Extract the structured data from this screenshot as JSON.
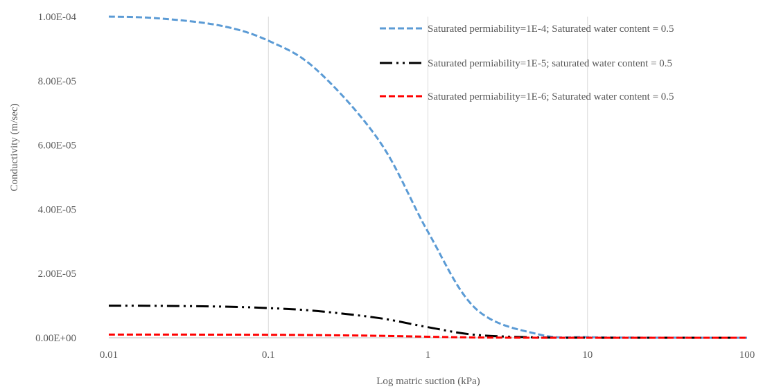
{
  "chart_data": {
    "type": "line",
    "xscale": "log",
    "xlim": [
      0.01,
      100
    ],
    "ylim": [
      0,
      0.0001
    ],
    "xlabel": "Log matric suction (kPa)",
    "ylabel": "Conductivity (m/sec)",
    "x_ticks": [
      "0.01",
      "0.1",
      "1",
      "10",
      "100"
    ],
    "y_ticks": [
      "0.00E+00",
      "2.00E-05",
      "4.00E-05",
      "6.00E-05",
      "8.00E-05",
      "1.00E-04"
    ],
    "vertical_gridlines": true,
    "legend_position": "top-right",
    "x": [
      0.01,
      0.02,
      0.05,
      0.1,
      0.2,
      0.5,
      1,
      2,
      5,
      10,
      20,
      50,
      100
    ],
    "series": [
      {
        "name": "Saturated permiability=1E-4; Saturated water content = 0.5",
        "color": "#5B9BD5",
        "style": "dashed",
        "values": [
          0.0001,
          9.95e-05,
          9.72e-05,
          9.25e-05,
          8.35e-05,
          6.1e-05,
          3.3e-05,
          9e-06,
          1e-06,
          2e-07,
          5e-08,
          1e-08,
          0.0
        ]
      },
      {
        "name": "Saturated permiability=1E-5; saturated water content = 0.5",
        "color": "#000000",
        "style": "dash-dot-dot",
        "values": [
          1e-05,
          9.95e-06,
          9.72e-06,
          9.25e-06,
          8.35e-06,
          6.1e-06,
          3.3e-06,
          9e-07,
          1e-07,
          2e-08,
          5e-09,
          1e-09,
          0.0
        ]
      },
      {
        "name": "Saturated permiability=1E-6; Saturated water content = 0.5",
        "color": "#FF0000",
        "style": "dashed",
        "values": [
          1e-06,
          9.95e-07,
          9.72e-07,
          9.25e-07,
          8.35e-07,
          6.1e-07,
          3.3e-07,
          9e-08,
          1e-08,
          2e-09,
          5e-10,
          1e-10,
          0.0
        ]
      }
    ]
  }
}
